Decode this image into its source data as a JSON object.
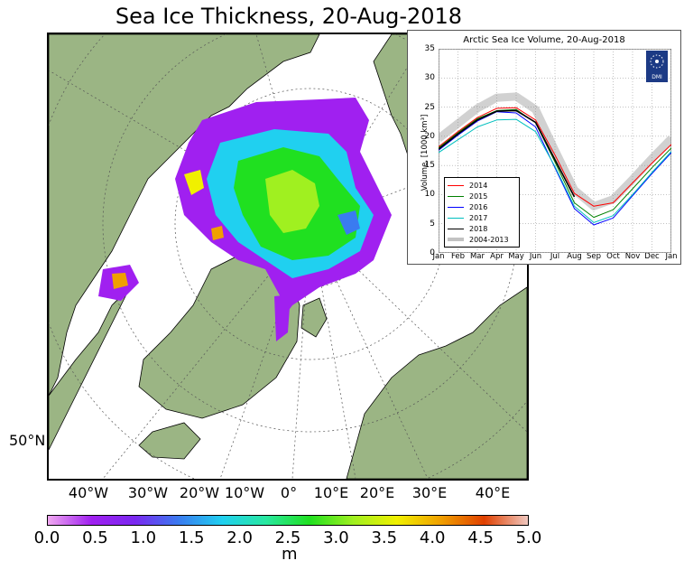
{
  "title": "Sea Ice Thickness, 20-Aug-2018",
  "map": {
    "lat_label": "50°N",
    "lon_labels": [
      "40°W",
      "30°W",
      "20°W",
      "10°W",
      "0°",
      "10°E",
      "20°E",
      "30°E",
      "40°E"
    ],
    "colors": {
      "land": "#9bb584",
      "ocean": "#ffffff",
      "coast": "#000000",
      "graticule": "#555555"
    }
  },
  "colorbar": {
    "ticks": [
      "0.0",
      "0.5",
      "1.0",
      "1.5",
      "2.0",
      "2.5",
      "3.0",
      "3.5",
      "4.0",
      "4.5",
      "5.0"
    ],
    "unit": "m",
    "colors": [
      "#f0a8f0",
      "#a020f0",
      "#7a28f0",
      "#3a7bf0",
      "#20d0f0",
      "#28e8a0",
      "#20e020",
      "#a0f020",
      "#f0f000",
      "#f0a000",
      "#e04000",
      "#f0c8c0"
    ]
  },
  "inset": {
    "title": "Arctic Sea Ice Volume, 20-Aug-2018",
    "logo_text": "DMI",
    "chart_data": {
      "type": "line",
      "title": "Arctic Sea Ice Volume, 20-Aug-2018",
      "xlabel": "",
      "ylabel": "Volume, [1000 km³]",
      "ylim": [
        0,
        35
      ],
      "yticks": [
        0,
        5,
        10,
        15,
        20,
        25,
        30,
        35
      ],
      "categories": [
        "Jan",
        "Feb",
        "Mar",
        "Apr",
        "May",
        "Jun",
        "Jul",
        "Aug",
        "Sep",
        "Oct",
        "Nov",
        "Dec",
        "Jan"
      ],
      "legend_position": "lower-left",
      "series": [
        {
          "name": "2014",
          "color": "#ff0000",
          "values": [
            18.2,
            20.8,
            23.2,
            24.8,
            24.9,
            22.8,
            16.8,
            10.2,
            8.0,
            8.6,
            12.0,
            15.4,
            18.6
          ]
        },
        {
          "name": "2015",
          "color": "#008000",
          "values": [
            18.0,
            20.6,
            23.0,
            24.4,
            24.6,
            22.3,
            15.6,
            8.6,
            6.1,
            7.4,
            11.0,
            14.6,
            18.0
          ]
        },
        {
          "name": "2016",
          "color": "#0000ff",
          "values": [
            17.6,
            20.2,
            22.6,
            24.2,
            24.0,
            21.6,
            14.6,
            7.6,
            4.8,
            6.0,
            9.8,
            13.6,
            17.2
          ]
        },
        {
          "name": "2017",
          "color": "#00bfbf",
          "values": [
            17.2,
            19.4,
            21.6,
            22.8,
            22.9,
            20.8,
            14.8,
            8.0,
            5.2,
            6.4,
            10.0,
            13.8,
            17.4
          ]
        },
        {
          "name": "2018",
          "color": "#000000",
          "values": [
            17.8,
            20.4,
            22.8,
            24.3,
            24.4,
            22.4,
            16.0,
            9.6,
            null,
            null,
            null,
            null,
            null
          ]
        },
        {
          "name": "2004-2013",
          "color": "#999999",
          "values": [
            19.6,
            22.2,
            24.8,
            26.6,
            26.8,
            24.6,
            17.6,
            10.8,
            8.0,
            9.2,
            12.6,
            16.2,
            19.6
          ]
        }
      ]
    }
  }
}
